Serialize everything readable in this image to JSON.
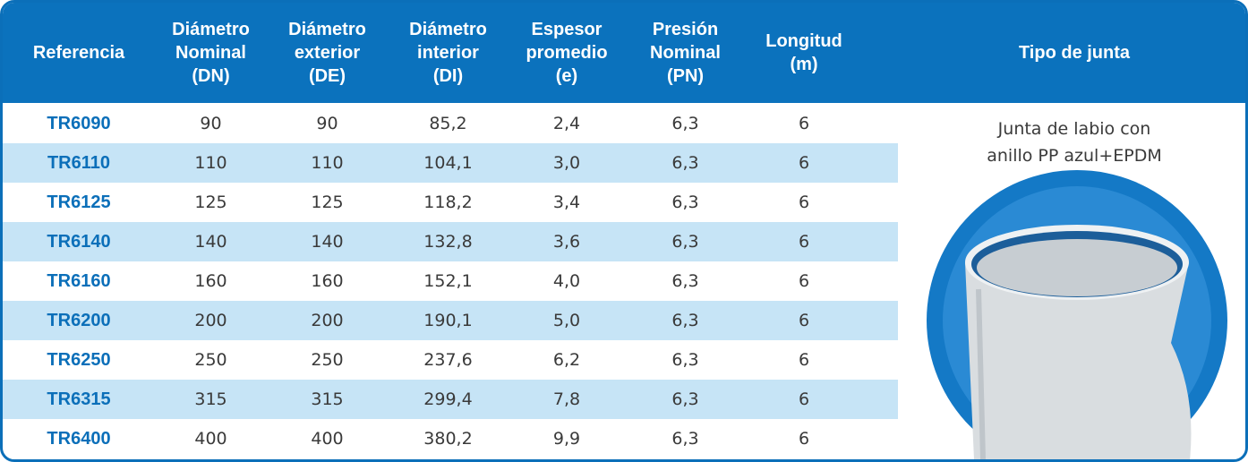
{
  "table": {
    "header": [
      [
        "Referencia"
      ],
      [
        "Diámetro",
        "Nominal",
        "(DN)"
      ],
      [
        "Diámetro",
        "exterior",
        "(DE)"
      ],
      [
        "Diámetro",
        "interior",
        "(DI)"
      ],
      [
        "Espesor",
        "promedio",
        "(e)"
      ],
      [
        "Presión",
        "Nominal",
        "(PN)"
      ],
      [
        "Longitud",
        "(m)"
      ],
      [
        "Tipo de junta"
      ]
    ],
    "rows": [
      [
        "TR6090",
        "90",
        "90",
        "85,2",
        "2,4",
        "6,3",
        "6"
      ],
      [
        "TR6110",
        "110",
        "110",
        "104,1",
        "3,0",
        "6,3",
        "6"
      ],
      [
        "TR6125",
        "125",
        "125",
        "118,2",
        "3,4",
        "6,3",
        "6"
      ],
      [
        "TR6140",
        "140",
        "140",
        "132,8",
        "3,6",
        "6,3",
        "6"
      ],
      [
        "TR6160",
        "160",
        "160",
        "152,1",
        "4,0",
        "6,3",
        "6"
      ],
      [
        "TR6200",
        "200",
        "200",
        "190,1",
        "5,0",
        "6,3",
        "6"
      ],
      [
        "TR6250",
        "250",
        "250",
        "237,6",
        "6,2",
        "6,3",
        "6"
      ],
      [
        "TR6315",
        "315",
        "315",
        "299,4",
        "7,8",
        "6,3",
        "6"
      ],
      [
        "TR6400",
        "400",
        "400",
        "380,2",
        "9,9",
        "6,3",
        "6"
      ]
    ],
    "note": [
      "Junta de labio con",
      "anillo PP azul+EPDM"
    ]
  }
}
